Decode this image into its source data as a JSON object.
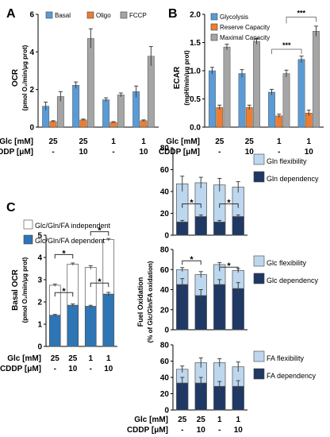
{
  "colors": {
    "basal": "#5b9bd5",
    "oligo": "#ed7d31",
    "fccp": "#a5a5a5",
    "glycolysis": "#5b9bd5",
    "reserve": "#ed7d31",
    "maximal": "#a5a5a5",
    "independent": "#ffffff",
    "dependent": "#2e75b6",
    "flexibility": "#bdd7ee",
    "dependency": "#1f3864",
    "axis": "#000000"
  },
  "x_conditions": {
    "row1_label": "Glc [mM]",
    "row2_label": "CDDP [μM]",
    "glc": [
      "25",
      "25",
      "1",
      "1"
    ],
    "cddp": [
      "-",
      "10",
      "-",
      "10"
    ]
  },
  "chart_data": [
    {
      "panel": "A",
      "type": "bar",
      "ylabel": "OCR",
      "ylabel_units": "(pmol O₂/min/μg prot)",
      "ylim": [
        0,
        7
      ],
      "yticks": [
        "0",
        "2",
        "4",
        "6"
      ],
      "categories": [
        "25 / -",
        "25 / 10",
        "1 / -",
        "1 / 10"
      ],
      "series": [
        {
          "name": "Basal",
          "values": [
            1.3,
            2.6,
            1.7,
            2.2
          ],
          "errors": [
            0.25,
            0.2,
            0.12,
            0.35
          ]
        },
        {
          "name": "Oligo",
          "values": [
            0.35,
            0.45,
            0.3,
            0.4
          ],
          "errors": [
            0.05,
            0.05,
            0.04,
            0.05
          ]
        },
        {
          "name": "FCCP",
          "values": [
            1.9,
            5.5,
            2.0,
            4.4
          ],
          "errors": [
            0.3,
            0.6,
            0.12,
            0.6
          ]
        }
      ]
    },
    {
      "panel": "B",
      "type": "bar",
      "ylabel": "ECAR",
      "ylabel_units": "(mpH/min/μg prot)",
      "ylim": [
        0,
        2.0
      ],
      "yticks": [
        "0.0",
        "0.5",
        "1.0",
        "1.5",
        "2.0"
      ],
      "categories": [
        "25 / -",
        "25 / 10",
        "1 / -",
        "1 / 10"
      ],
      "series": [
        {
          "name": "Glycolysis",
          "values": [
            1.0,
            0.95,
            0.62,
            1.2
          ],
          "errors": [
            0.06,
            0.07,
            0.05,
            0.06
          ]
        },
        {
          "name": "Reserve Capacity",
          "values": [
            0.35,
            0.35,
            0.2,
            0.25
          ],
          "errors": [
            0.04,
            0.04,
            0.03,
            0.05
          ]
        },
        {
          "name": "Maximal Capacity",
          "values": [
            1.42,
            1.52,
            0.95,
            1.7
          ],
          "errors": [
            0.05,
            0.05,
            0.06,
            0.09
          ]
        }
      ],
      "annotations": [
        "***",
        "***"
      ]
    },
    {
      "panel": "C",
      "type": "bar",
      "stacked": true,
      "ylabel": "Basal OCR",
      "ylabel_units": "(pmol O₂/min/μg prot)",
      "ylim": [
        0,
        5
      ],
      "yticks": [
        "0",
        "1",
        "2",
        "3",
        "4",
        "5"
      ],
      "categories": [
        "25 / -",
        "25 / 10",
        "1 / -",
        "1 / 10"
      ],
      "series": [
        {
          "name": "Glc/Gln/FA dependent",
          "values": [
            1.4,
            1.85,
            1.8,
            2.35
          ],
          "errors": [
            0.04,
            0.06,
            0.05,
            0.08
          ]
        },
        {
          "name": "Glc/Gln/FA independent",
          "values": [
            1.35,
            1.85,
            1.75,
            2.45
          ],
          "errors": [
            0.05,
            0.05,
            0.08,
            0.05
          ]
        }
      ],
      "annotations": [
        "*",
        "*",
        "*",
        "*"
      ]
    },
    {
      "panel": "fuel-gln",
      "type": "bar",
      "stacked": true,
      "ylabel": "Fuel Oxidation",
      "ylabel_units": "(% of Glc/Gln/FA oxidation)",
      "ylim": [
        0,
        80
      ],
      "yticks": [
        "0",
        "20",
        "40",
        "60",
        "80"
      ],
      "categories": [
        "25 / -",
        "25 / 10",
        "1 / -",
        "1 / 10"
      ],
      "series": [
        {
          "name": "Gln dependency",
          "values": [
            12,
            17,
            12,
            17
          ],
          "errors": [
            1.5,
            1.5,
            1.5,
            1.5
          ]
        },
        {
          "name": "Gln flexibility",
          "values": [
            35,
            31,
            34,
            27
          ],
          "errors": [
            7,
            5,
            6,
            5
          ]
        }
      ],
      "annotations": [
        "*",
        "*"
      ]
    },
    {
      "panel": "fuel-glc",
      "type": "bar",
      "stacked": true,
      "ylim": [
        0,
        80
      ],
      "yticks": [
        "0",
        "20",
        "40",
        "60",
        "80"
      ],
      "categories": [
        "25 / -",
        "25 / 10",
        "1 / -",
        "1 / 10"
      ],
      "series": [
        {
          "name": "Glc dependency",
          "values": [
            45,
            34,
            45,
            41
          ],
          "errors": [
            6,
            6,
            5,
            6
          ]
        },
        {
          "name": "Glc flexibility",
          "values": [
            15,
            21,
            20,
            18
          ],
          "errors": [
            2,
            3,
            2,
            2
          ]
        }
      ],
      "annotations": [
        "*",
        "*"
      ]
    },
    {
      "panel": "fuel-fa",
      "type": "bar",
      "stacked": true,
      "ylim": [
        0,
        80
      ],
      "yticks": [
        "0",
        "20",
        "40",
        "60",
        "80"
      ],
      "categories": [
        "25 / -",
        "25 / 10",
        "1 / -",
        "1 / 10"
      ],
      "series": [
        {
          "name": "FA dependency",
          "values": [
            33,
            33,
            29,
            29
          ],
          "errors": [
            7,
            7,
            6,
            7
          ]
        },
        {
          "name": "FA flexibility",
          "values": [
            17,
            25,
            29,
            24
          ],
          "errors": [
            4,
            6,
            5,
            6
          ]
        }
      ]
    }
  ],
  "panel_letters": [
    "A",
    "B",
    "C"
  ],
  "significance": {
    "triple": "***",
    "single": "*"
  }
}
